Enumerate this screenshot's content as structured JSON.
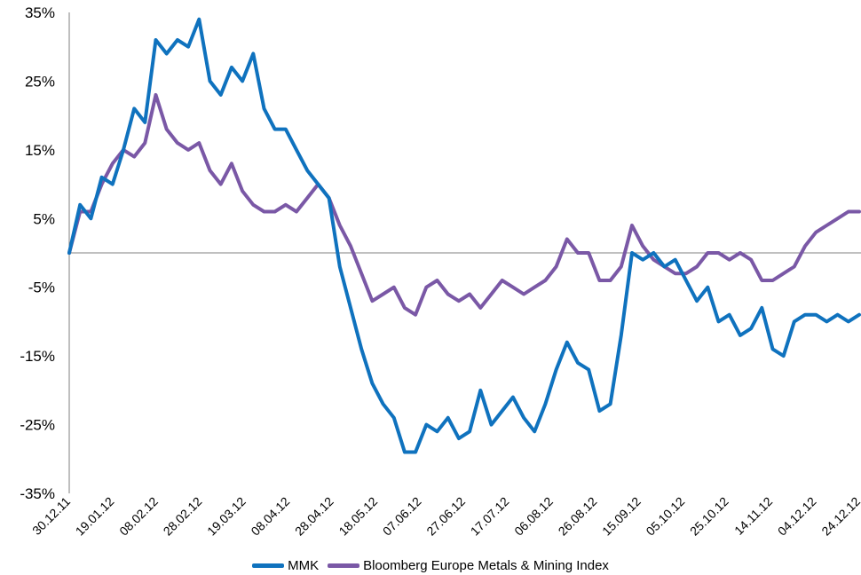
{
  "chart_data": {
    "type": "line",
    "title": "",
    "xlabel": "",
    "ylabel": "",
    "ylim": [
      -35,
      35
    ],
    "y_tick_values": [
      35,
      25,
      15,
      5,
      -5,
      -15,
      -25,
      -35
    ],
    "y_tick_labels": [
      "35%",
      "25%",
      "15%",
      "5%",
      "-5%",
      "-15%",
      "-25%",
      "-35%"
    ],
    "x_tick_labels": [
      "30.12.11",
      "19.01.12",
      "08.02.12",
      "28.02.12",
      "19.03.12",
      "08.04.12",
      "28.04.12",
      "18.05.12",
      "07.06.12",
      "27.06.12",
      "17.07.12",
      "06.08.12",
      "26.08.12",
      "15.09.12",
      "05.10.12",
      "25.10.12",
      "14.11.12",
      "04.12.12",
      "24.12.12"
    ],
    "x": [
      "30.12.11",
      "05.01.12",
      "10.01.12",
      "15.01.12",
      "19.01.12",
      "24.01.12",
      "29.01.12",
      "03.02.12",
      "08.02.12",
      "13.02.12",
      "18.02.12",
      "23.02.12",
      "28.02.12",
      "04.03.12",
      "09.03.12",
      "14.03.12",
      "19.03.12",
      "24.03.12",
      "29.03.12",
      "03.04.12",
      "08.04.12",
      "13.04.12",
      "18.04.12",
      "23.04.12",
      "28.04.12",
      "03.05.12",
      "08.05.12",
      "13.05.12",
      "18.05.12",
      "23.05.12",
      "28.05.12",
      "02.06.12",
      "07.06.12",
      "12.06.12",
      "17.06.12",
      "22.06.12",
      "27.06.12",
      "02.07.12",
      "07.07.12",
      "12.07.12",
      "17.07.12",
      "22.07.12",
      "27.07.12",
      "01.08.12",
      "06.08.12",
      "11.08.12",
      "16.08.12",
      "21.08.12",
      "26.08.12",
      "31.08.12",
      "05.09.12",
      "10.09.12",
      "15.09.12",
      "20.09.12",
      "25.09.12",
      "30.09.12",
      "05.10.12",
      "10.10.12",
      "15.10.12",
      "20.10.12",
      "25.10.12",
      "30.10.12",
      "04.11.12",
      "09.11.12",
      "14.11.12",
      "19.11.12",
      "24.11.12",
      "29.11.12",
      "04.12.12",
      "09.12.12",
      "14.12.12",
      "19.12.12",
      "24.12.12",
      "29.12.12"
    ],
    "series": [
      {
        "name": "MMK",
        "color": "#0F72BE",
        "values": [
          0,
          7,
          5,
          11,
          10,
          15,
          21,
          19,
          31,
          29,
          31,
          30,
          34,
          25,
          23,
          27,
          25,
          29,
          21,
          18,
          18,
          15,
          12,
          10,
          8,
          -2,
          -8,
          -14,
          -19,
          -22,
          -24,
          -29,
          -29,
          -25,
          -26,
          -24,
          -27,
          -26,
          -20,
          -25,
          -23,
          -21,
          -24,
          -26,
          -22,
          -17,
          -13,
          -16,
          -17,
          -23,
          -22,
          -12,
          0,
          -1,
          0,
          -2,
          -1,
          -4,
          -7,
          -5,
          -10,
          -9,
          -12,
          -11,
          -8,
          -14,
          -15,
          -10,
          -9,
          -9,
          -10,
          -9,
          -10,
          -9
        ]
      },
      {
        "name": "Bloomberg Europe Metals & Mining Index",
        "color": "#7A58A6",
        "values": [
          0,
          6,
          6,
          10,
          13,
          15,
          14,
          16,
          23,
          18,
          16,
          15,
          16,
          12,
          10,
          13,
          9,
          7,
          6,
          6,
          7,
          6,
          8,
          10,
          8,
          4,
          1,
          -3,
          -7,
          -6,
          -5,
          -8,
          -9,
          -5,
          -4,
          -6,
          -7,
          -6,
          -8,
          -6,
          -4,
          -5,
          -6,
          -5,
          -4,
          -2,
          2,
          0,
          0,
          -4,
          -4,
          -2,
          4,
          1,
          -1,
          -2,
          -3,
          -3,
          -2,
          0,
          0,
          -1,
          0,
          -1,
          -4,
          -4,
          -3,
          -2,
          1,
          3,
          4,
          5,
          6,
          6
        ]
      }
    ],
    "grid": false,
    "zero_line": true,
    "legend_position": "bottom-center"
  }
}
